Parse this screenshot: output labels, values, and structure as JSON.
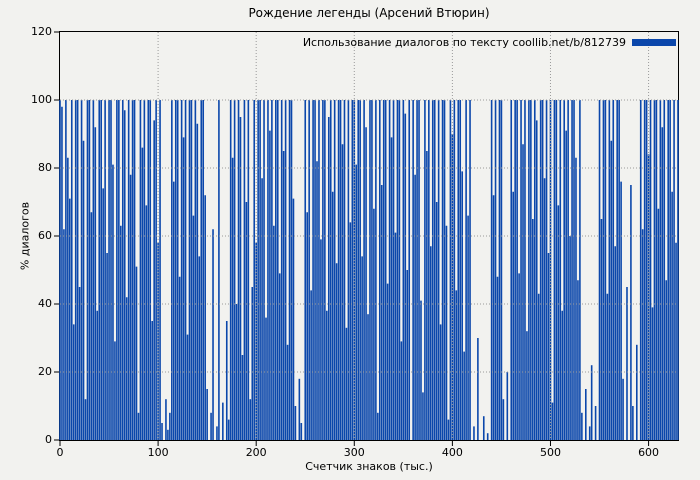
{
  "page": {
    "background_color": "#f2f2ef",
    "text_color": "#000000"
  },
  "chart_data": {
    "type": "bar",
    "title": "Рождение легенды (Арсений Втюрин)",
    "xlabel": "Счетчик знаков (тыс.)",
    "ylabel": "% диалогов",
    "legend": {
      "label": "Использование диалогов по тексту coollib.net/b/812739",
      "position": "top-right"
    },
    "xlim": [
      0,
      630
    ],
    "ylim": [
      0,
      120
    ],
    "xticks": [
      0,
      100,
      200,
      300,
      400,
      500,
      600
    ],
    "yticks": [
      0,
      20,
      40,
      60,
      80,
      100,
      120
    ],
    "grid": "dotted",
    "grid_color": "#9a9a9a",
    "bar_color": "#0b47ab",
    "border_color": "#000000",
    "x_start": 0,
    "x_step": 2,
    "values": [
      100,
      98,
      62,
      100,
      83,
      71,
      100,
      34,
      100,
      100,
      45,
      100,
      88,
      12,
      100,
      100,
      67,
      100,
      92,
      38,
      100,
      100,
      74,
      100,
      55,
      100,
      100,
      81,
      29,
      100,
      100,
      63,
      100,
      97,
      42,
      100,
      78,
      100,
      100,
      51,
      8,
      100,
      86,
      100,
      69,
      100,
      100,
      35,
      94,
      100,
      58,
      100,
      5,
      0,
      12,
      3,
      8,
      100,
      76,
      100,
      100,
      48,
      100,
      89,
      100,
      31,
      100,
      100,
      66,
      100,
      93,
      54,
      100,
      100,
      72,
      15,
      0,
      8,
      62,
      0,
      4,
      100,
      0,
      11,
      0,
      35,
      6,
      100,
      83,
      100,
      40,
      100,
      95,
      25,
      100,
      70,
      100,
      12,
      45,
      100,
      58,
      100,
      100,
      77,
      100,
      36,
      100,
      91,
      100,
      63,
      100,
      100,
      49,
      100,
      85,
      100,
      28,
      100,
      100,
      71,
      10,
      0,
      18,
      5,
      0,
      100,
      67,
      100,
      44,
      100,
      100,
      82,
      100,
      59,
      100,
      100,
      38,
      95,
      100,
      73,
      100,
      52,
      100,
      100,
      87,
      100,
      33,
      100,
      64,
      100,
      100,
      81,
      100,
      100,
      54,
      100,
      92,
      37,
      100,
      100,
      68,
      100,
      8,
      100,
      75,
      100,
      100,
      46,
      100,
      89,
      100,
      61,
      100,
      100,
      29,
      100,
      96,
      50,
      100,
      0,
      100,
      78,
      100,
      100,
      41,
      14,
      100,
      85,
      100,
      57,
      100,
      100,
      70,
      100,
      34,
      100,
      100,
      63,
      6,
      100,
      90,
      100,
      44,
      100,
      100,
      79,
      26,
      100,
      66,
      100,
      0,
      4,
      0,
      30,
      0,
      0,
      7,
      0,
      2,
      0,
      100,
      72,
      100,
      48,
      100,
      100,
      12,
      0,
      20,
      0,
      100,
      73,
      100,
      100,
      49,
      100,
      87,
      100,
      32,
      100,
      100,
      65,
      100,
      94,
      43,
      100,
      100,
      77,
      100,
      55,
      100,
      11,
      100,
      100,
      69,
      100,
      38,
      100,
      91,
      100,
      60,
      100,
      100,
      83,
      47,
      100,
      8,
      0,
      15,
      0,
      4,
      22,
      0,
      10,
      0,
      100,
      65,
      100,
      100,
      43,
      100,
      88,
      100,
      57,
      100,
      100,
      76,
      18,
      0,
      45,
      0,
      75,
      10,
      0,
      28,
      0,
      100,
      62,
      100,
      100,
      84,
      100,
      39,
      100,
      100,
      68,
      100,
      92,
      100,
      47,
      100,
      100,
      73,
      100,
      58,
      100
    ]
  }
}
